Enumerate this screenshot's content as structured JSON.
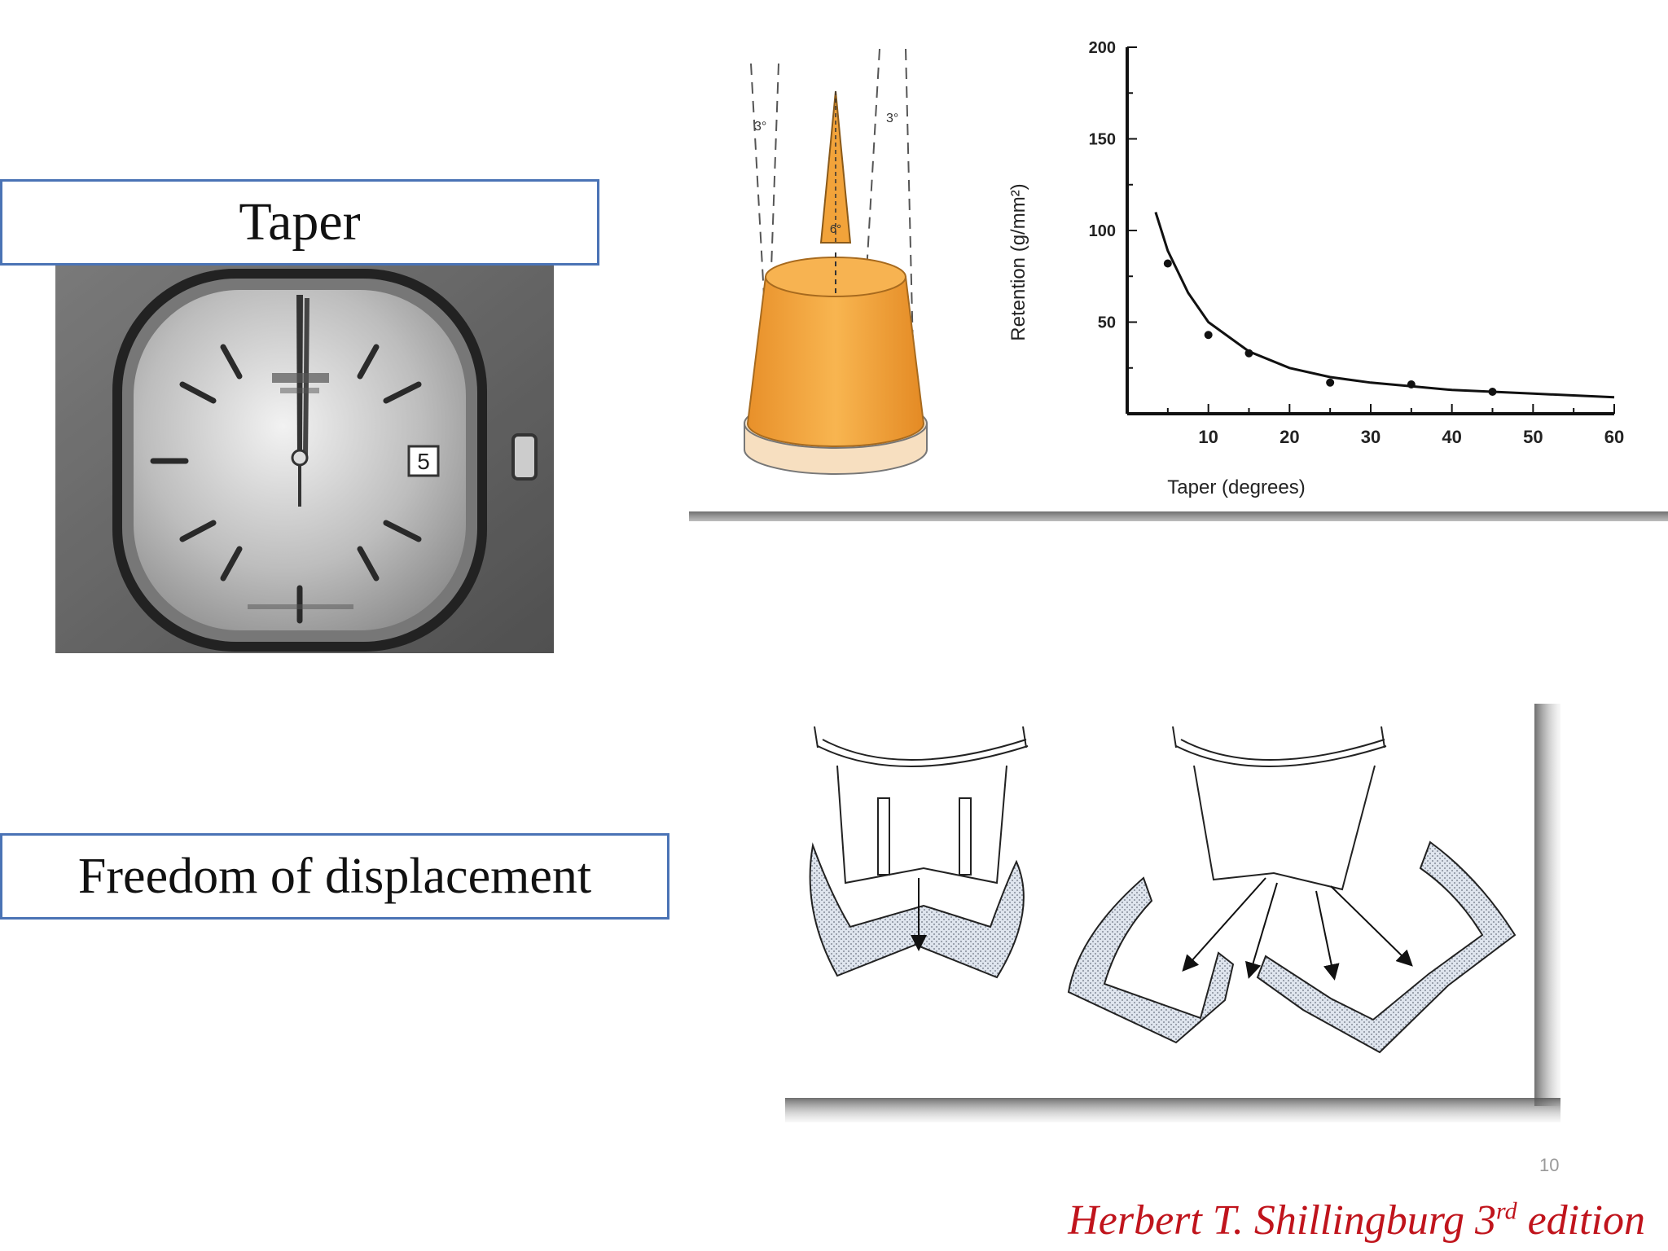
{
  "labels": {
    "taper": "Taper",
    "freedom": "Freedom of displacement"
  },
  "watch": {
    "date": "5"
  },
  "taper_diagram": {
    "left_angle": "3°",
    "right_angle": "3°",
    "total_angle": "6°"
  },
  "chart_data": {
    "type": "scatter",
    "xlabel": "Taper (degrees)",
    "ylabel": "Retention (g/mm²)",
    "x_ticks": [
      10,
      20,
      30,
      40,
      50,
      60
    ],
    "y_ticks": [
      50,
      100,
      150,
      200
    ],
    "xlim": [
      0,
      60
    ],
    "ylim": [
      0,
      200
    ],
    "points": [
      {
        "x": 5,
        "y": 82
      },
      {
        "x": 10,
        "y": 43
      },
      {
        "x": 15,
        "y": 33
      },
      {
        "x": 25,
        "y": 17
      },
      {
        "x": 35,
        "y": 16
      },
      {
        "x": 45,
        "y": 12
      }
    ],
    "fit_curve": [
      {
        "x": 3.5,
        "y": 110
      },
      {
        "x": 5,
        "y": 89
      },
      {
        "x": 7.5,
        "y": 66
      },
      {
        "x": 10,
        "y": 50
      },
      {
        "x": 15,
        "y": 34
      },
      {
        "x": 20,
        "y": 25
      },
      {
        "x": 25,
        "y": 20
      },
      {
        "x": 30,
        "y": 17
      },
      {
        "x": 35,
        "y": 15
      },
      {
        "x": 40,
        "y": 13
      },
      {
        "x": 45,
        "y": 12
      },
      {
        "x": 50,
        "y": 11
      },
      {
        "x": 55,
        "y": 10
      },
      {
        "x": 60,
        "y": 9
      }
    ],
    "grid": false
  },
  "citation": {
    "main": "Herbert T. Shillingburg 3",
    "sup": "rd",
    "suffix": " edition"
  },
  "page_number": "10",
  "colors": {
    "box_border": "#4a73b5",
    "die_orange": "#f5a73c",
    "citation_red": "#c0141c"
  }
}
